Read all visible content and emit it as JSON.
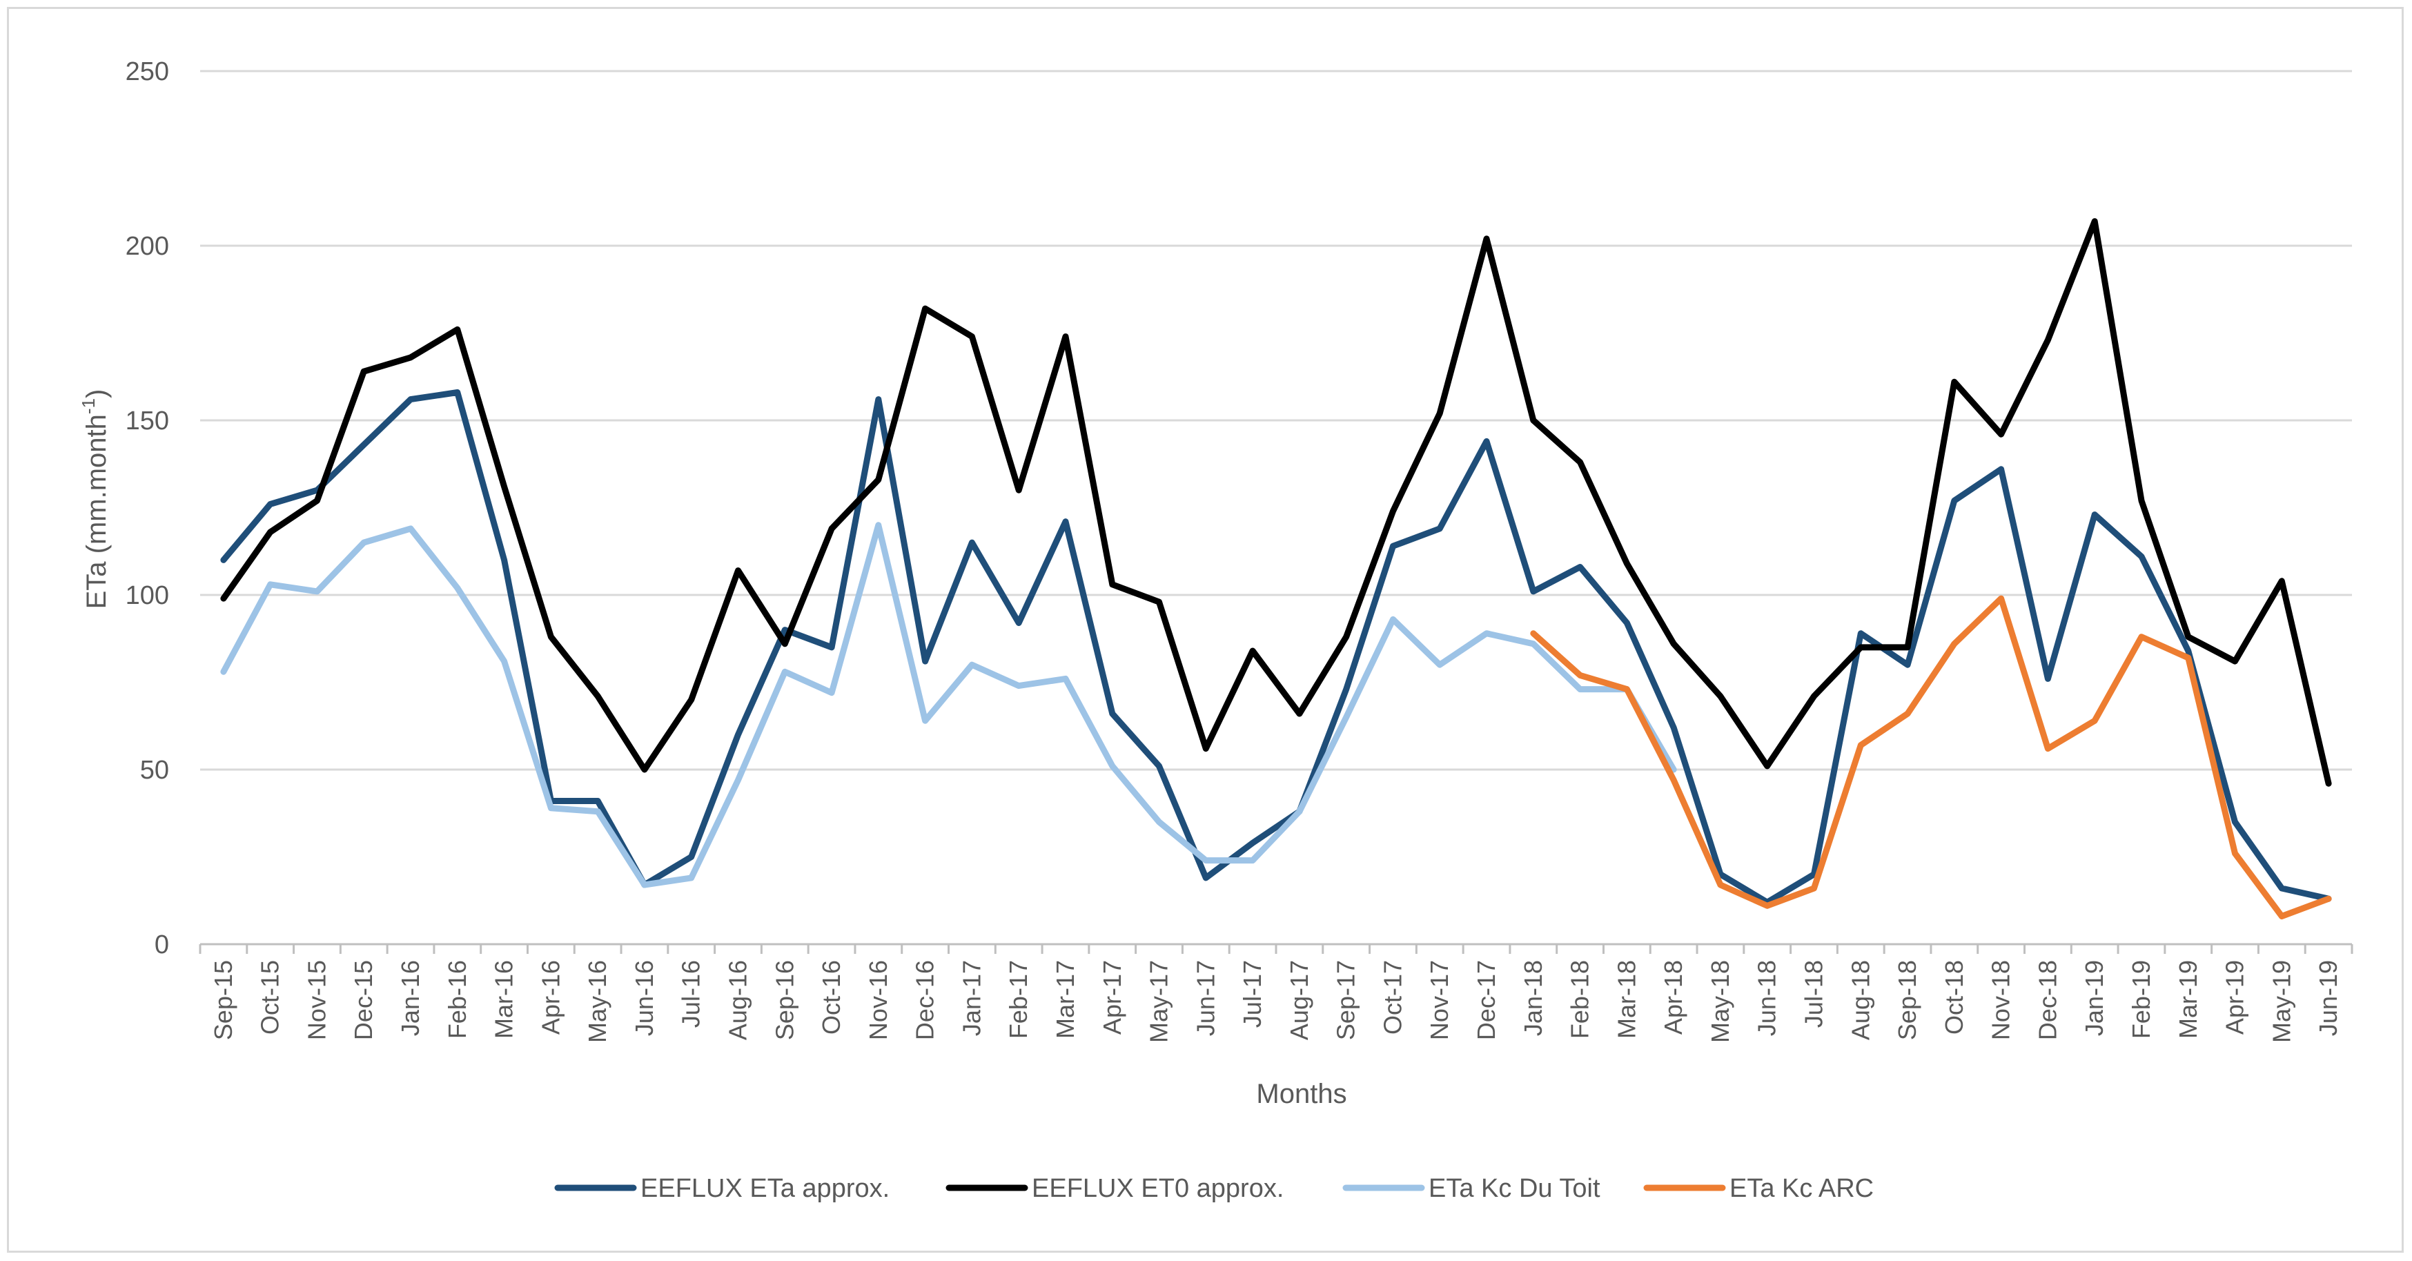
{
  "chart_data": {
    "type": "line",
    "title": "",
    "xlabel": "Months",
    "ylabel": "ETa (mm.month-1)",
    "ylabel_main": "ETa (mm.month",
    "ylabel_sup": "-1",
    "ylabel_close": ")",
    "ylim": [
      0,
      250
    ],
    "yticks": [
      "0",
      "50",
      "100",
      "150",
      "200",
      "250"
    ],
    "grid": true,
    "legend_position": "bottom",
    "categories": [
      "Sep-15",
      "Oct-15",
      "Nov-15",
      "Dec-15",
      "Jan-16",
      "Feb-16",
      "Mar-16",
      "Apr-16",
      "May-16",
      "Jun-16",
      "Jul-16",
      "Aug-16",
      "Sep-16",
      "Oct-16",
      "Nov-16",
      "Dec-16",
      "Jan-17",
      "Feb-17",
      "Mar-17",
      "Apr-17",
      "May-17",
      "Jun-17",
      "Jul-17",
      "Aug-17",
      "Sep-17",
      "Oct-17",
      "Nov-17",
      "Dec-17",
      "Jan-18",
      "Feb-18",
      "Mar-18",
      "Apr-18",
      "May-18",
      "Jun-18",
      "Jul-18",
      "Aug-18",
      "Sep-18",
      "Oct-18",
      "Nov-18",
      "Dec-18",
      "Jan-19",
      "Feb-19",
      "Mar-19",
      "Apr-19",
      "May-19",
      "Jun-19"
    ],
    "series": [
      {
        "name": "EEFLUX ETa approx.",
        "color": "#1f4e79",
        "values": [
          110,
          126,
          130,
          143,
          156,
          158,
          110,
          41,
          41,
          17,
          25,
          60,
          90,
          85,
          156,
          81,
          115,
          92,
          121,
          66,
          51,
          19,
          29,
          38,
          73,
          114,
          119,
          144,
          101,
          108,
          92,
          62,
          20,
          12,
          20,
          89,
          80,
          127,
          136,
          76,
          123,
          111,
          84,
          35,
          16,
          13
        ]
      },
      {
        "name": "EEFLUX ET0 approx.",
        "color": "#000000",
        "values": [
          99,
          118,
          127,
          164,
          168,
          176,
          131,
          88,
          71,
          50,
          70,
          107,
          86,
          119,
          133,
          182,
          174,
          130,
          174,
          103,
          98,
          56,
          84,
          66,
          88,
          124,
          152,
          202,
          150,
          138,
          109,
          86,
          71,
          51,
          71,
          85,
          85,
          161,
          146,
          173,
          207,
          127,
          88,
          81,
          104,
          46
        ]
      },
      {
        "name": "ETa Kc Du Toit",
        "color": "#9dc3e6",
        "values": [
          78,
          103,
          101,
          115,
          119,
          102,
          81,
          39,
          38,
          17,
          19,
          47,
          78,
          72,
          120,
          64,
          80,
          74,
          76,
          51,
          35,
          24,
          24,
          38,
          65,
          93,
          80,
          89,
          86,
          73,
          73,
          50,
          null,
          null,
          null,
          null,
          null,
          null,
          null,
          null,
          null,
          null,
          null,
          null,
          null,
          null
        ]
      },
      {
        "name": "ETa Kc ARC",
        "color": "#ed7d31",
        "values": [
          null,
          null,
          null,
          null,
          null,
          null,
          null,
          null,
          null,
          null,
          null,
          null,
          null,
          null,
          null,
          null,
          null,
          null,
          null,
          null,
          null,
          null,
          null,
          null,
          null,
          null,
          null,
          null,
          89,
          77,
          73,
          47,
          17,
          11,
          16,
          57,
          66,
          86,
          99,
          56,
          64,
          88,
          82,
          26,
          8,
          13
        ]
      }
    ]
  }
}
